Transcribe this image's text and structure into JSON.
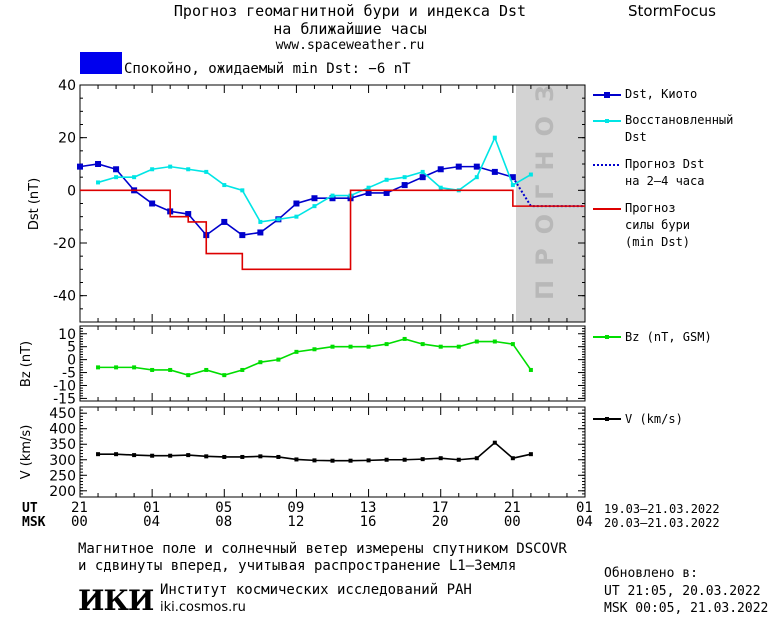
{
  "header": {
    "title_line1": "Прогноз геомагнитной бури и индекса Dst",
    "title_line2": "на ближайшие часы",
    "url": "www.spaceweather.ru",
    "brand": "StormFocus"
  },
  "status": {
    "text": "Спокойно, ожидаемый min Dst: −6 nT",
    "color": "#0000ee"
  },
  "legend": {
    "dst_kyoto": "Dst, Киото",
    "dst_restored_1": "Восстановленный",
    "dst_restored_2": "Dst",
    "forecast_dst_1": "Прогноз Dst",
    "forecast_dst_2": "на 2–4 часа",
    "storm_1": "Прогноз",
    "storm_2": "силы бури",
    "storm_3": "(min Dst)",
    "bz": "Bz (nT, GSM)",
    "v": "V (km/s)"
  },
  "forecast_band_label": "ПРОГНОЗ",
  "axis_rows": {
    "ut_label": "UT",
    "msk_label": "MSK",
    "ut_ticks": [
      "21",
      "01",
      "05",
      "09",
      "13",
      "17",
      "21",
      "01"
    ],
    "msk_ticks": [
      "00",
      "04",
      "08",
      "12",
      "16",
      "20",
      "00",
      "04"
    ],
    "ut_range": "19.03–21.03.2022",
    "msk_range": "20.03–21.03.2022"
  },
  "footer": {
    "note_line1": "Магнитное поле и солнечный ветер измерены спутником DSCOVR",
    "note_line2": "и сдвинуты вперед, учитывая распространение L1–Земля",
    "logo_text": "ИКИ",
    "institute": "Институт космических исследований РАН",
    "site": "iki.cosmos.ru",
    "updated_label": "Обновлено в:",
    "updated_ut": "UT  21:05, 20.03.2022",
    "updated_msk": "MSK 00:05, 21.03.2022"
  },
  "chart_data": [
    {
      "type": "line",
      "ylabel": "Dst (nT)",
      "ylim": [
        -50,
        40
      ],
      "yticks": [
        40,
        20,
        0,
        -20,
        -40
      ],
      "xlim": [
        0,
        28
      ],
      "forecast_from": 24,
      "series": [
        {
          "name": "Dst, Киото",
          "color": "#0000cc",
          "x": [
            0,
            1,
            2,
            3,
            4,
            5,
            6,
            7,
            8,
            9,
            10,
            11,
            12,
            13,
            14,
            15,
            16,
            17,
            18,
            19,
            20,
            21,
            22,
            23,
            24
          ],
          "y": [
            9,
            10,
            8,
            0,
            -5,
            -8,
            -9,
            -17,
            -12,
            -17,
            -16,
            -11,
            -5,
            -3,
            -3,
            -3,
            -1,
            -1,
            2,
            5,
            8,
            9,
            9,
            7,
            5
          ]
        },
        {
          "name": "Восстановленный Dst",
          "color": "#00e5e5",
          "x": [
            1,
            2,
            3,
            4,
            5,
            6,
            7,
            8,
            9,
            10,
            11,
            12,
            13,
            14,
            15,
            16,
            17,
            18,
            19,
            20,
            21,
            22,
            23,
            24,
            25
          ],
          "y": [
            3,
            5,
            5,
            8,
            9,
            8,
            7,
            2,
            0,
            -12,
            -11,
            -10,
            -6,
            -2,
            -2,
            1,
            4,
            5,
            7,
            1,
            0,
            5,
            20,
            2,
            6
          ]
        },
        {
          "name": "Прогноз Dst на 2–4 часа",
          "color": "#0000cc",
          "dashed": true,
          "x": [
            24,
            25,
            26,
            28
          ],
          "y": [
            5,
            -6,
            -6,
            -6
          ]
        },
        {
          "name": "Прогноз силы бури (min Dst)",
          "color": "#dd0000",
          "step": true,
          "x": [
            0,
            4,
            5,
            6,
            7,
            8,
            9,
            10,
            11,
            12,
            13,
            14,
            15,
            16,
            17,
            18,
            19,
            20,
            21,
            22,
            23,
            24,
            25,
            28
          ],
          "y": [
            0,
            0,
            -10,
            -12,
            -24,
            -24,
            -30,
            -30,
            -30,
            -30,
            -30,
            -30,
            0,
            0,
            0,
            0,
            0,
            0,
            0,
            0,
            0,
            -6,
            -6,
            -6
          ]
        }
      ]
    },
    {
      "type": "line",
      "ylabel": "Bz (nT)",
      "ylim": [
        -16,
        13
      ],
      "yticks": [
        10,
        5,
        0,
        -5,
        -10,
        -15
      ],
      "xlim": [
        0,
        28
      ],
      "series": [
        {
          "name": "Bz (nT, GSM)",
          "color": "#00dd00",
          "x": [
            1,
            2,
            3,
            4,
            5,
            6,
            7,
            8,
            9,
            10,
            11,
            12,
            13,
            14,
            15,
            16,
            17,
            18,
            19,
            20,
            21,
            22,
            23,
            24,
            25
          ],
          "y": [
            -3,
            -3,
            -3,
            -4,
            -4,
            -6,
            -4,
            -6,
            -4,
            -1,
            0,
            3,
            4,
            5,
            5,
            5,
            6,
            8,
            6,
            5,
            5,
            7,
            7,
            6,
            -4
          ]
        }
      ]
    },
    {
      "type": "line",
      "ylabel": "V (km/s)",
      "ylim": [
        180,
        470
      ],
      "yticks": [
        450,
        400,
        350,
        300,
        250,
        200
      ],
      "xlim": [
        0,
        28
      ],
      "series": [
        {
          "name": "V (km/s)",
          "color": "#000000",
          "x": [
            1,
            2,
            3,
            4,
            5,
            6,
            7,
            8,
            9,
            10,
            11,
            12,
            13,
            14,
            15,
            16,
            17,
            18,
            19,
            20,
            21,
            22,
            23,
            24,
            25
          ],
          "y": [
            318,
            318,
            315,
            313,
            313,
            315,
            311,
            309,
            309,
            311,
            309,
            301,
            298,
            297,
            297,
            298,
            300,
            300,
            302,
            305,
            300,
            305,
            355,
            305,
            318
          ]
        }
      ]
    }
  ]
}
